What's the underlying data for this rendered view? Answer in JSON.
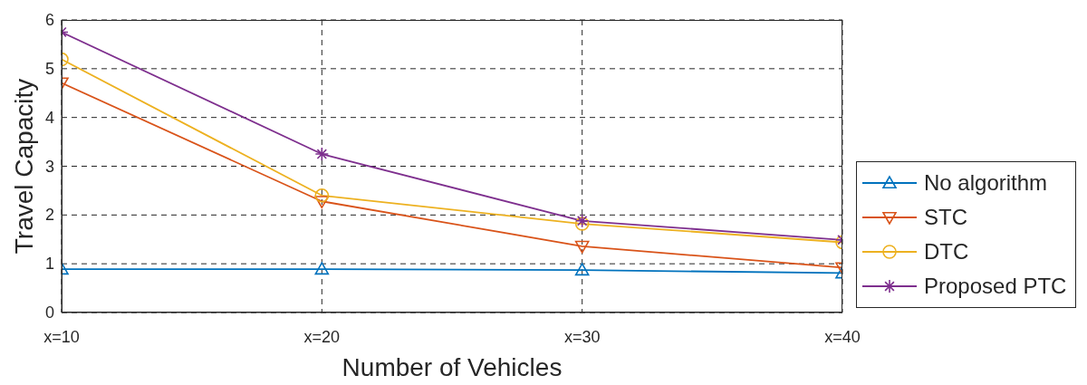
{
  "chart_data": {
    "type": "line",
    "xlabel": "Number of Vehicles",
    "ylabel": "Travel Capacity",
    "x": [
      10,
      20,
      30,
      40
    ],
    "xlim": [
      10,
      40
    ],
    "xticks": [
      {
        "value": 10,
        "label": "x=10"
      },
      {
        "value": 20,
        "label": "x=20"
      },
      {
        "value": 30,
        "label": "x=30"
      },
      {
        "value": 40,
        "label": "x=40"
      }
    ],
    "ylim": [
      0,
      6
    ],
    "yticks": [
      0,
      1,
      2,
      3,
      4,
      5,
      6
    ],
    "grid": true,
    "legend": "right",
    "line_style": "solid",
    "series": [
      {
        "name": "No algorithm",
        "color": "#0072bd",
        "marker": "triangle",
        "values": [
          0.89,
          0.89,
          0.87,
          0.81
        ]
      },
      {
        "name": "STC",
        "color": "#d95319",
        "marker": "triangle-down",
        "values": [
          4.71,
          2.28,
          1.36,
          0.92
        ]
      },
      {
        "name": "DTC",
        "color": "#edb120",
        "marker": "circle",
        "values": [
          5.19,
          2.4,
          1.82,
          1.44
        ]
      },
      {
        "name": "Proposed PTC",
        "color": "#7e2f8e",
        "marker": "cross",
        "values": [
          5.75,
          3.25,
          1.88,
          1.49
        ]
      }
    ]
  }
}
